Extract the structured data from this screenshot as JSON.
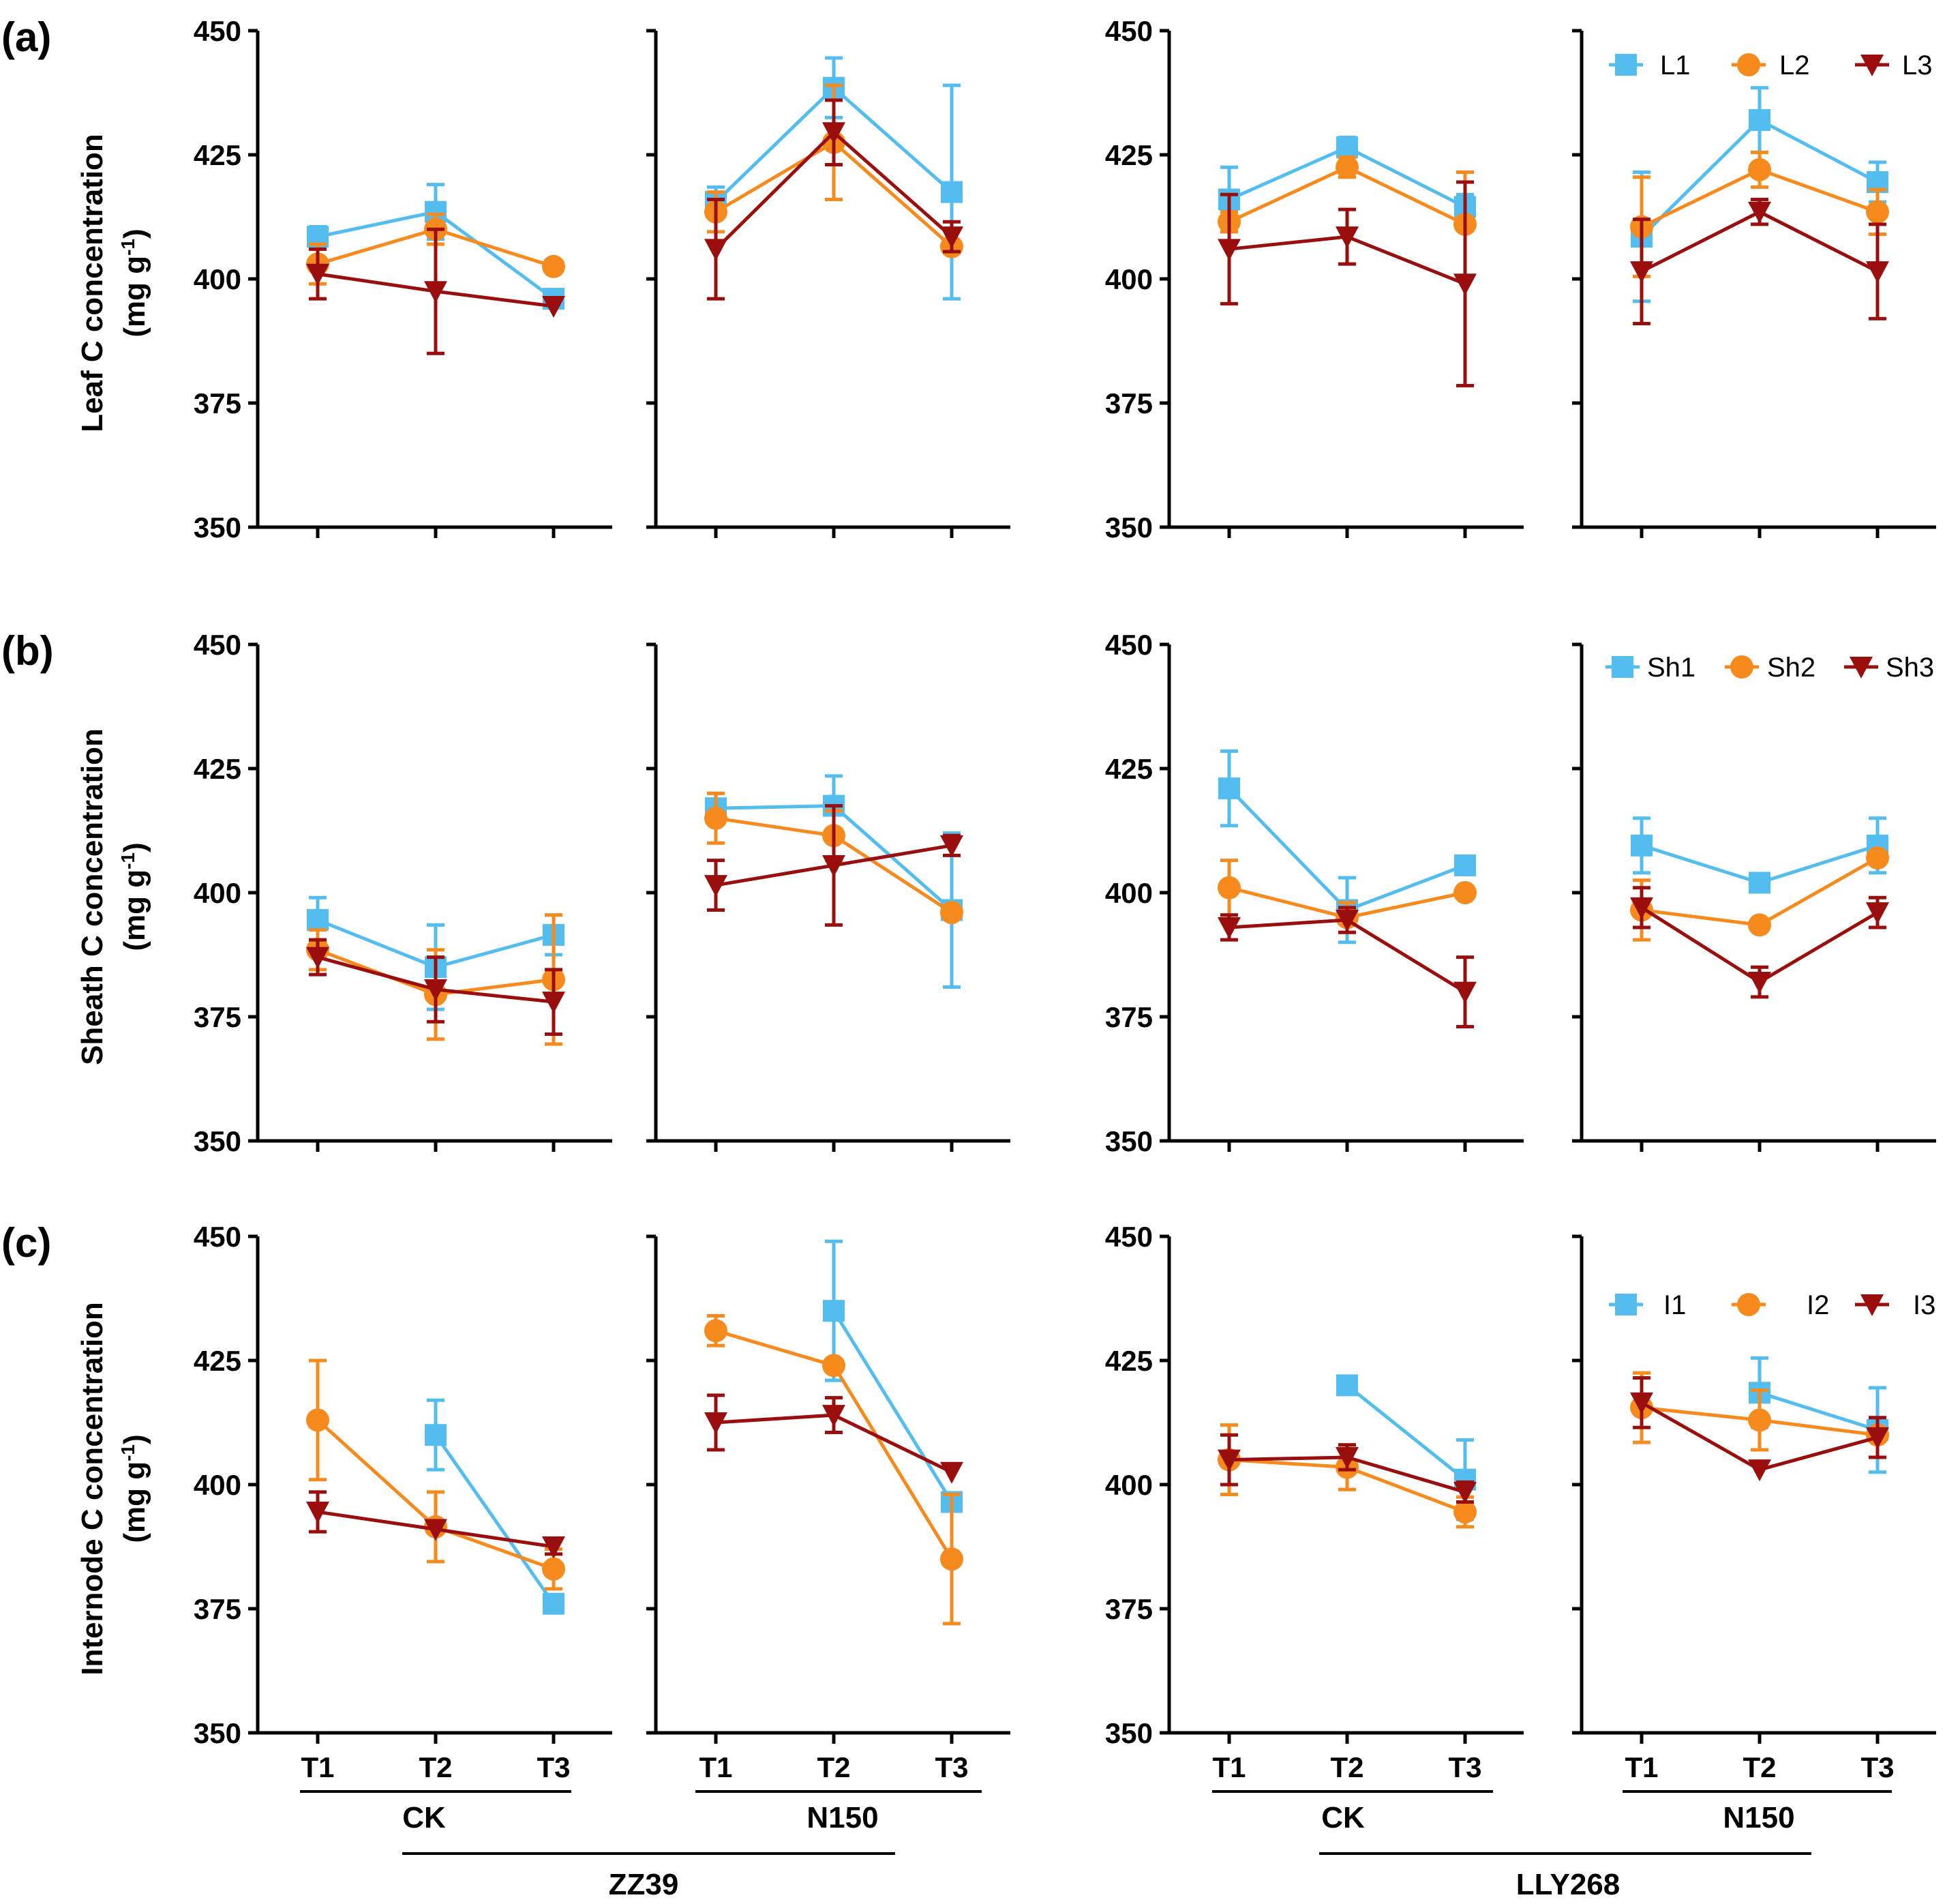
{
  "colors": {
    "s1": "#54bdf0",
    "s2": "#f78a1d",
    "s3": "#9a0e0e",
    "axis": "#000000"
  },
  "x_ticks": [
    "T1",
    "T2",
    "T3"
  ],
  "y_ticks": [
    "350",
    "375",
    "400",
    "425",
    "450"
  ],
  "y_range": [
    350,
    450
  ],
  "groups": {
    "zz39": {
      "label": "ZZ39",
      "treatments": [
        "CK",
        "N150"
      ]
    },
    "lly268": {
      "label": "LLY268",
      "treatments": [
        "CK",
        "N150"
      ]
    }
  },
  "chart_data": [
    {
      "type": "line",
      "panel_label": "(a)",
      "ylabel_line1": "Leaf C concentration",
      "ylabel_line2_pre": "(mg g",
      "ylabel_sup": "-1",
      "ylabel_line2_post": ")",
      "legend": [
        "L1",
        "L2",
        "L3"
      ],
      "ylim": [
        350,
        450
      ],
      "categories": [
        "T1",
        "T2",
        "T3"
      ],
      "subplots": [
        {
          "cultivar": "ZZ39",
          "treatment": "CK",
          "series": [
            {
              "name": "L1",
              "values": [
                408.5,
                413.5,
                396.0
              ],
              "errors": [
                2.0,
                5.5,
                1.0
              ]
            },
            {
              "name": "L2",
              "values": [
                403.0,
                410.0,
                402.5
              ],
              "errors": [
                4.0,
                3.0,
                0.0
              ]
            },
            {
              "name": "L3",
              "values": [
                401.0,
                397.5,
                394.5
              ],
              "errors": [
                5.0,
                12.5,
                0.0
              ]
            }
          ]
        },
        {
          "cultivar": "ZZ39",
          "treatment": "N150",
          "series": [
            {
              "name": "L1",
              "values": [
                415.5,
                438.5,
                417.5
              ],
              "errors": [
                3.0,
                6.0,
                21.5
              ]
            },
            {
              "name": "L2",
              "values": [
                413.5,
                427.5,
                406.5
              ],
              "errors": [
                4.0,
                11.5,
                0.0
              ]
            },
            {
              "name": "L3",
              "values": [
                406.0,
                429.5,
                408.5
              ],
              "errors": [
                10.0,
                6.5,
                3.0
              ]
            }
          ]
        },
        {
          "cultivar": "LLY268",
          "treatment": "CK",
          "series": [
            {
              "name": "L1",
              "values": [
                416.0,
                426.5,
                414.5
              ],
              "errors": [
                6.5,
                2.0,
                2.5
              ]
            },
            {
              "name": "L2",
              "values": [
                411.5,
                422.5,
                411.0
              ],
              "errors": [
                2.0,
                2.0,
                10.5
              ]
            },
            {
              "name": "L3",
              "values": [
                406.0,
                408.5,
                399.0
              ],
              "errors": [
                11.0,
                5.5,
                20.5
              ]
            }
          ]
        },
        {
          "cultivar": "LLY268",
          "treatment": "N150",
          "series": [
            {
              "name": "L1",
              "values": [
                408.5,
                432.0,
                419.5
              ],
              "errors": [
                13.0,
                6.5,
                4.0
              ]
            },
            {
              "name": "L2",
              "values": [
                410.5,
                422.0,
                413.5
              ],
              "errors": [
                10.0,
                3.5,
                4.5
              ]
            },
            {
              "name": "L3",
              "values": [
                401.5,
                413.5,
                401.5
              ],
              "errors": [
                10.5,
                2.5,
                9.5
              ]
            }
          ]
        }
      ]
    },
    {
      "type": "line",
      "panel_label": "(b)",
      "ylabel_line1": "Sheath C concentration",
      "ylabel_line2_pre": "(mg g",
      "ylabel_sup": "-1",
      "ylabel_line2_post": ")",
      "legend": [
        "Sh1",
        "Sh2",
        "Sh3"
      ],
      "ylim": [
        350,
        450
      ],
      "categories": [
        "T1",
        "T2",
        "T3"
      ],
      "subplots": [
        {
          "cultivar": "ZZ39",
          "treatment": "CK",
          "series": [
            {
              "name": "Sh1",
              "values": [
                394.5,
                385.0,
                391.5
              ],
              "errors": [
                4.5,
                8.5,
                4.0
              ]
            },
            {
              "name": "Sh2",
              "values": [
                388.5,
                379.5,
                382.5
              ],
              "errors": [
                4.0,
                9.0,
                13.0
              ]
            },
            {
              "name": "Sh3",
              "values": [
                387.0,
                380.5,
                378.0
              ],
              "errors": [
                3.5,
                6.5,
                6.5
              ]
            }
          ]
        },
        {
          "cultivar": "ZZ39",
          "treatment": "N150",
          "series": [
            {
              "name": "Sh1",
              "values": [
                417.0,
                417.5,
                396.5
              ],
              "errors": [
                3.0,
                6.0,
                15.5
              ]
            },
            {
              "name": "Sh2",
              "values": [
                415.0,
                411.5,
                396.0
              ],
              "errors": [
                5.0,
                5.0,
                0.0
              ]
            },
            {
              "name": "Sh3",
              "values": [
                401.5,
                405.5,
                409.5
              ],
              "errors": [
                5.0,
                12.0,
                2.0
              ]
            }
          ]
        },
        {
          "cultivar": "LLY268",
          "treatment": "CK",
          "series": [
            {
              "name": "Sh1",
              "values": [
                421.0,
                396.5,
                405.5
              ],
              "errors": [
                7.5,
                6.5,
                0.0
              ]
            },
            {
              "name": "Sh2",
              "values": [
                401.0,
                395.0,
                400.0
              ],
              "errors": [
                5.5,
                3.0,
                0.0
              ]
            },
            {
              "name": "Sh3",
              "values": [
                393.0,
                394.5,
                380.0
              ],
              "errors": [
                2.5,
                2.5,
                7.0
              ]
            }
          ]
        },
        {
          "cultivar": "LLY268",
          "treatment": "N150",
          "series": [
            {
              "name": "Sh1",
              "values": [
                409.5,
                402.0,
                409.5
              ],
              "errors": [
                5.5,
                0.0,
                5.5
              ]
            },
            {
              "name": "Sh2",
              "values": [
                396.5,
                393.5,
                407.0
              ],
              "errors": [
                6.0,
                0.0,
                0.0
              ]
            },
            {
              "name": "Sh3",
              "values": [
                397.0,
                382.0,
                396.0
              ],
              "errors": [
                4.0,
                3.0,
                3.0
              ]
            }
          ]
        }
      ]
    },
    {
      "type": "line",
      "panel_label": "(c)",
      "ylabel_line1": "Internode C concentration",
      "ylabel_line2_pre": "(mg g",
      "ylabel_sup": "-1",
      "ylabel_line2_post": ")",
      "legend": [
        "I1",
        "I2",
        "I3"
      ],
      "ylim": [
        350,
        450
      ],
      "categories": [
        "T1",
        "T2",
        "T3"
      ],
      "subplots": [
        {
          "cultivar": "ZZ39",
          "treatment": "CK",
          "series": [
            {
              "name": "I1",
              "values": [
                null,
                410.0,
                376.0
              ],
              "errors": [
                0,
                7.0,
                0.0
              ]
            },
            {
              "name": "I2",
              "values": [
                413.0,
                391.5,
                383.0
              ],
              "errors": [
                12.0,
                7.0,
                4.0
              ]
            },
            {
              "name": "I3",
              "values": [
                394.5,
                391.0,
                387.5
              ],
              "errors": [
                4.0,
                0.0,
                1.5
              ]
            }
          ]
        },
        {
          "cultivar": "ZZ39",
          "treatment": "N150",
          "series": [
            {
              "name": "I1",
              "values": [
                null,
                435.0,
                396.5
              ],
              "errors": [
                0,
                14.0,
                0.0
              ]
            },
            {
              "name": "I2",
              "values": [
                431.0,
                424.0,
                385.0
              ],
              "errors": [
                3.0,
                0.0,
                13.0
              ]
            },
            {
              "name": "I3",
              "values": [
                412.5,
                414.0,
                402.5
              ],
              "errors": [
                5.5,
                3.5,
                0.0
              ]
            }
          ]
        },
        {
          "cultivar": "LLY268",
          "treatment": "CK",
          "series": [
            {
              "name": "I1",
              "values": [
                null,
                420.0,
                401.0
              ],
              "errors": [
                0,
                0.0,
                8.0
              ]
            },
            {
              "name": "I2",
              "values": [
                405.0,
                403.5,
                394.5
              ],
              "errors": [
                7.0,
                4.5,
                3.0
              ]
            },
            {
              "name": "I3",
              "values": [
                405.0,
                405.5,
                398.5
              ],
              "errors": [
                5.0,
                2.5,
                2.0
              ]
            }
          ]
        },
        {
          "cultivar": "LLY268",
          "treatment": "N150",
          "series": [
            {
              "name": "I1",
              "values": [
                null,
                418.5,
                411.0
              ],
              "errors": [
                0,
                7.0,
                8.5
              ]
            },
            {
              "name": "I2",
              "values": [
                415.5,
                413.0,
                410.0
              ],
              "errors": [
                7.0,
                6.0,
                0.0
              ]
            },
            {
              "name": "I3",
              "values": [
                416.5,
                403.0,
                409.5
              ],
              "errors": [
                5.0,
                0.0,
                4.0
              ]
            }
          ]
        }
      ]
    }
  ]
}
